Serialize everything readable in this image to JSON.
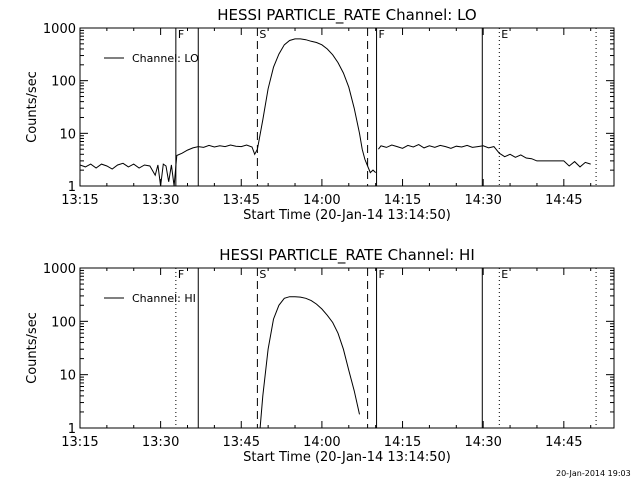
{
  "footer_timestamp": "20-Jan-2014 19:03",
  "chart_data": [
    {
      "type": "line",
      "title": "HESSI PARTICLE_RATE Channel: LO",
      "xlabel": "Start Time (20-Jan-14 13:14:50)",
      "ylabel": "Counts/sec",
      "y_scale": "log",
      "ylim": [
        1,
        1000
      ],
      "xlim_minutes_since_1314_50": [
        0.17,
        99.5
      ],
      "x_ticks": [
        "13:15",
        "13:30",
        "13:45",
        "14:00",
        "14:15",
        "14:30",
        "14:45"
      ],
      "y_ticks": [
        "1",
        "10",
        "100",
        "1000"
      ],
      "legend": "Channel: LO",
      "legend_position": "top-left",
      "markers": [
        {
          "label": "F",
          "time": "13:32:50",
          "style": "solid"
        },
        {
          "label": "",
          "time": "13:37:00",
          "style": "solid"
        },
        {
          "label": "S",
          "time": "13:48:00",
          "style": "dashed"
        },
        {
          "label": "",
          "time": "14:08:30",
          "style": "dashed"
        },
        {
          "label": "F",
          "time": "14:10:10",
          "style": "solid"
        },
        {
          "label": "",
          "time": "14:29:50",
          "style": "solid"
        },
        {
          "label": "E",
          "time": "14:33:00",
          "style": "dotted"
        },
        {
          "label": "",
          "time": "14:51:00",
          "style": "dotted"
        }
      ],
      "series": [
        {
          "name": "Channel: LO",
          "segments": [
            {
              "x": [
                "13:15:00",
                "13:16:00",
                "13:17:00",
                "13:18:00",
                "13:19:00",
                "13:20:00",
                "13:21:00",
                "13:22:00",
                "13:23:00",
                "13:24:00",
                "13:25:00",
                "13:26:00",
                "13:27:00",
                "13:28:00",
                "13:29:00",
                "13:29:30",
                "13:30:00",
                "13:30:30",
                "13:31:00",
                "13:31:30",
                "13:32:00",
                "13:32:30",
                "13:33:00",
                "13:34:00",
                "13:35:00",
                "13:36:00",
                "13:37:00",
                "13:38:00",
                "13:39:00",
                "13:40:00",
                "13:41:00",
                "13:42:00",
                "13:43:00",
                "13:44:00",
                "13:45:00",
                "13:46:00",
                "13:47:00",
                "13:47:30",
                "13:48:00",
                "13:49:00",
                "13:50:00",
                "13:51:00",
                "13:52:00",
                "13:53:00",
                "13:54:00",
                "13:55:00",
                "13:56:00",
                "13:57:00",
                "13:58:00",
                "13:59:00",
                "14:00:00",
                "14:01:00",
                "14:02:00",
                "14:03:00",
                "14:04:00",
                "14:05:00",
                "14:06:00",
                "14:07:00",
                "14:07:30",
                "14:08:00",
                "14:08:30",
                "14:09:00",
                "14:09:30",
                "14:10:00"
              ],
              "y": [
                2.5,
                2.3,
                2.6,
                2.2,
                2.6,
                2.4,
                2.1,
                2.5,
                2.7,
                2.3,
                2.6,
                2.2,
                2.5,
                2.4,
                1.6,
                2.5,
                1.0,
                2.6,
                2.4,
                1.2,
                2.5,
                1.0,
                3.8,
                4.2,
                4.8,
                5.3,
                5.6,
                5.4,
                5.9,
                5.5,
                5.8,
                5.6,
                6.0,
                5.7,
                5.6,
                6.0,
                5.5,
                4.0,
                5.0,
                18,
                70,
                180,
                320,
                480,
                580,
                620,
                620,
                600,
                560,
                530,
                480,
                400,
                310,
                220,
                140,
                75,
                30,
                10,
                5.0,
                3.2,
                2.4,
                1.8,
                2.0,
                1.8
              ]
            },
            {
              "x": [
                "14:10:30",
                "14:11:00",
                "14:12:00",
                "14:13:00",
                "14:14:00",
                "14:15:00",
                "14:16:00",
                "14:17:00",
                "14:18:00",
                "14:19:00",
                "14:20:00",
                "14:21:00",
                "14:22:00",
                "14:23:00",
                "14:24:00",
                "14:25:00",
                "14:26:00",
                "14:27:00",
                "14:28:00",
                "14:29:00",
                "14:30:00",
                "14:31:00",
                "14:32:00",
                "14:33:00",
                "14:34:00",
                "14:35:00",
                "14:36:00",
                "14:37:00",
                "14:38:00",
                "14:39:00",
                "14:40:00",
                "14:41:00",
                "14:42:00",
                "14:43:00",
                "14:44:00",
                "14:45:00",
                "14:46:00",
                "14:47:00",
                "14:48:00",
                "14:49:00",
                "14:50:00"
              ],
              "y": [
                5.0,
                5.8,
                5.4,
                6.0,
                5.6,
                5.2,
                5.9,
                5.5,
                6.1,
                5.3,
                5.8,
                5.4,
                5.9,
                5.6,
                5.2,
                5.7,
                5.5,
                5.9,
                5.4,
                5.6,
                5.8,
                5.3,
                5.6,
                4.2,
                3.6,
                4.0,
                3.5,
                3.9,
                3.4,
                3.3,
                3.0,
                3.0,
                3.0,
                3.0,
                3.0,
                3.0,
                2.4,
                2.9,
                2.3,
                2.8,
                2.6
              ]
            }
          ]
        }
      ]
    },
    {
      "type": "line",
      "title": "HESSI PARTICLE_RATE Channel: HI",
      "xlabel": "Start Time (20-Jan-14 13:14:50)",
      "ylabel": "Counts/sec",
      "y_scale": "log",
      "ylim": [
        1,
        1000
      ],
      "xlim_minutes_since_1314_50": [
        0.17,
        99.5
      ],
      "x_ticks": [
        "13:15",
        "13:30",
        "13:45",
        "14:00",
        "14:15",
        "14:30",
        "14:45"
      ],
      "y_ticks": [
        "1",
        "10",
        "100",
        "1000"
      ],
      "legend": "Channel: HI",
      "legend_position": "top-left",
      "markers": [
        {
          "label": "F",
          "time": "13:32:50",
          "style": "dotted"
        },
        {
          "label": "",
          "time": "13:37:00",
          "style": "solid"
        },
        {
          "label": "S",
          "time": "13:48:00",
          "style": "dashed"
        },
        {
          "label": "",
          "time": "14:08:30",
          "style": "dashed"
        },
        {
          "label": "F",
          "time": "14:10:10",
          "style": "solid"
        },
        {
          "label": "",
          "time": "14:29:50",
          "style": "solid"
        },
        {
          "label": "E",
          "time": "14:33:00",
          "style": "dotted"
        },
        {
          "label": "",
          "time": "14:51:00",
          "style": "dotted"
        }
      ],
      "series": [
        {
          "name": "Channel: HI",
          "segments": [
            {
              "x": [
                "13:48:30",
                "13:49:00",
                "13:50:00",
                "13:51:00",
                "13:52:00",
                "13:53:00",
                "13:54:00",
                "13:55:00",
                "13:56:00",
                "13:57:00",
                "13:58:00",
                "13:59:00",
                "14:00:00",
                "14:01:00",
                "14:02:00",
                "14:03:00",
                "14:04:00",
                "14:05:00",
                "14:06:00",
                "14:07:00"
              ],
              "y": [
                1.0,
                4.0,
                30,
                110,
                200,
                270,
                290,
                290,
                285,
                270,
                245,
                210,
                170,
                130,
                95,
                60,
                30,
                12,
                5.0,
                1.8
              ]
            }
          ]
        }
      ]
    }
  ]
}
